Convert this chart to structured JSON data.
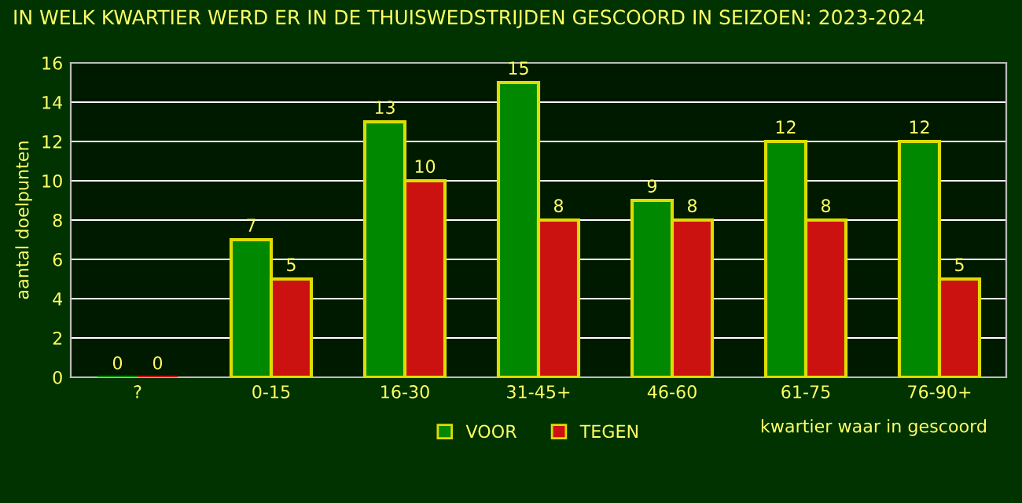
{
  "chart_data": {
    "type": "bar",
    "title": "IN WELK KWARTIER WERD ER IN DE THUISWEDSTRIJDEN GESCOORD IN SEIZOEN: 2023-2024",
    "categories": [
      "?",
      "0-15",
      "16-30",
      "31-45+",
      "46-60",
      "61-75",
      "76-90+"
    ],
    "series": [
      {
        "name": "VOOR",
        "color": "#008800",
        "values": [
          0,
          7,
          13,
          15,
          9,
          12,
          12
        ]
      },
      {
        "name": "TEGEN",
        "color": "#cc1111",
        "values": [
          0,
          5,
          10,
          8,
          8,
          8,
          5
        ]
      }
    ],
    "xlabel": "kwartier waar in gescoord",
    "ylabel": "aantal doelpunten",
    "ylim": [
      0,
      16
    ],
    "yticks": [
      0,
      2,
      4,
      6,
      8,
      10,
      12,
      14,
      16
    ],
    "grid": "y",
    "legend": "bottom",
    "data_labels": true
  }
}
